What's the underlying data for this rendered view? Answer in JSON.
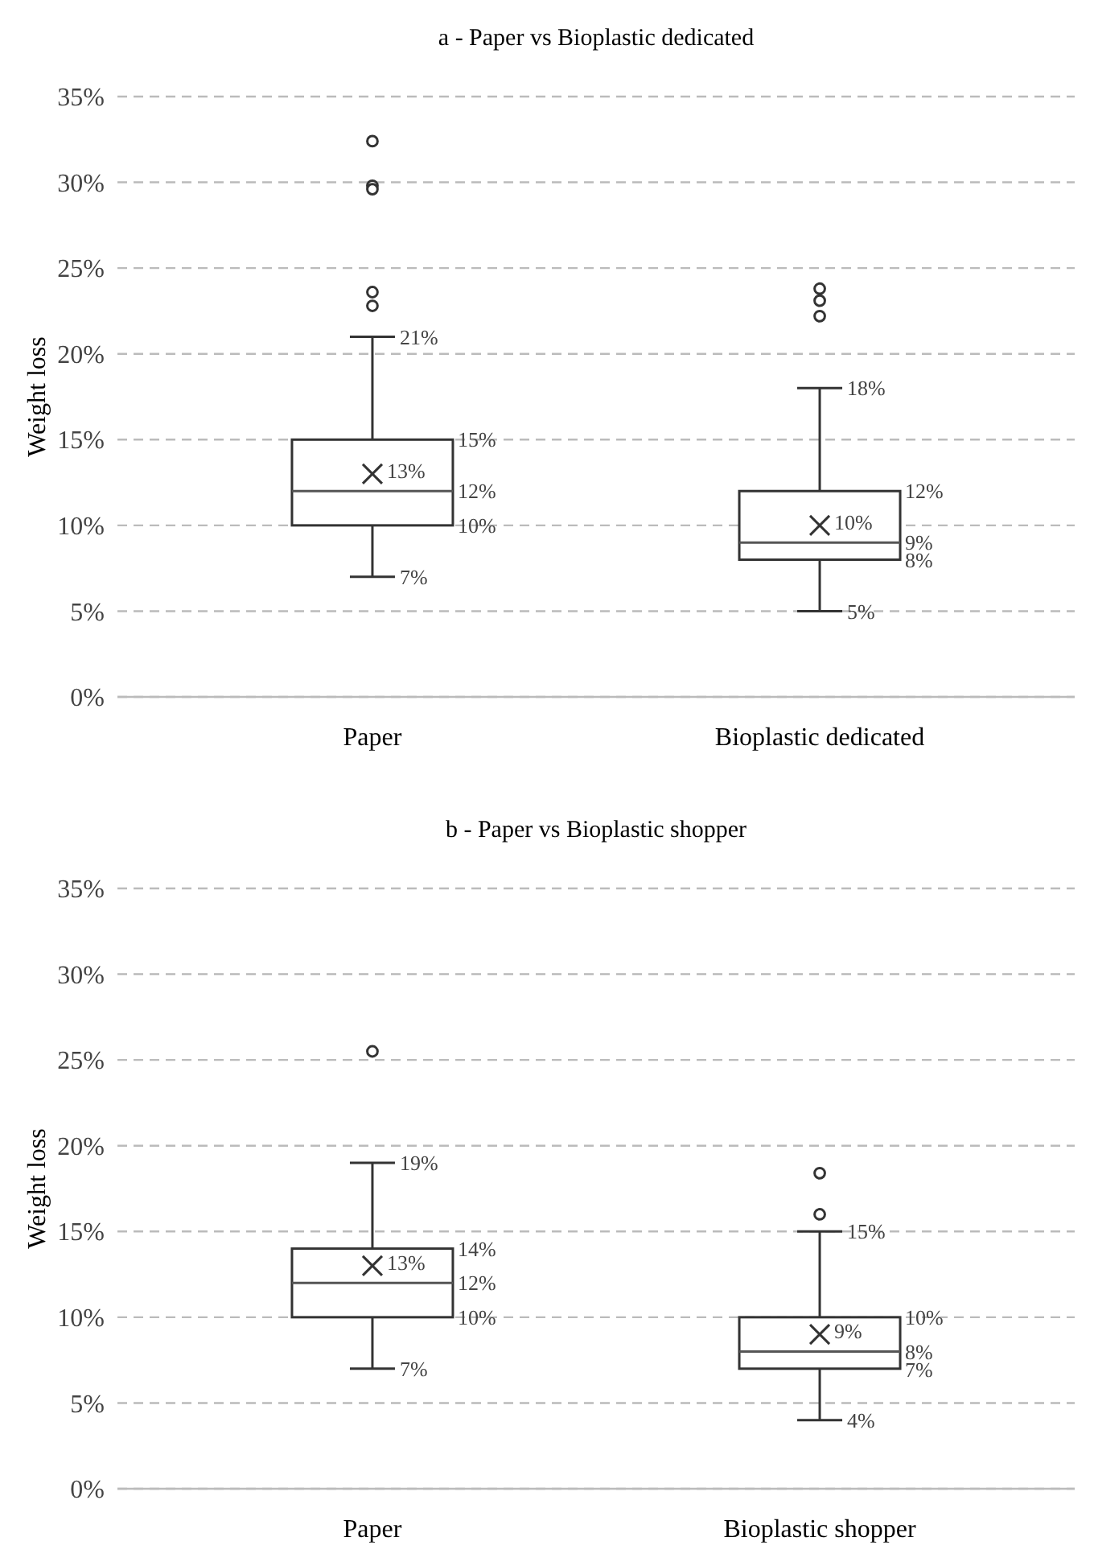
{
  "chart_data": [
    {
      "type": "box",
      "title": "a - Paper vs Bioplastic dedicated",
      "ylabel": "Weight loss",
      "categories": [
        "Paper",
        "Bioplastic dedicated"
      ],
      "boxes": [
        {
          "low": 7,
          "q1": 10,
          "median": 12,
          "q3": 15,
          "high": 21,
          "mean": 13,
          "outliers": [
            32.4,
            29.8,
            29.6,
            23.6,
            22.8
          ]
        },
        {
          "low": 5,
          "q1": 8,
          "median": 9,
          "q3": 12,
          "high": 18,
          "mean": 10,
          "outliers": [
            23.8,
            23.1,
            22.2
          ]
        }
      ],
      "ylim": [
        0,
        35
      ],
      "yticks": [
        {
          "value": 0,
          "label": "0%"
        },
        {
          "value": 5,
          "label": "5%"
        },
        {
          "value": 10,
          "label": "10%"
        },
        {
          "value": 15,
          "label": "15%"
        },
        {
          "value": 20,
          "label": "20%"
        },
        {
          "value": 25,
          "label": "25%"
        },
        {
          "value": 30,
          "label": "30%"
        },
        {
          "value": 35,
          "label": "35%"
        }
      ],
      "grid": "y",
      "annotations": [
        {
          "text": "21%",
          "x": "Paper",
          "y": 21
        },
        {
          "text": "7%",
          "x": "Paper",
          "y": 7
        },
        {
          "text": "18%",
          "x": "Bioplastic dedicated",
          "y": 18
        },
        {
          "text": "5%",
          "x": "Bioplastic dedicated",
          "y": 5
        },
        "15%",
        "13%",
        "12%",
        "10%",
        "12%",
        "10%",
        "9%",
        "8%"
      ]
    },
    {
      "type": "box",
      "title": "b - Paper vs Bioplastic shopper",
      "ylabel": "Weight loss",
      "categories": [
        "Paper",
        "Bioplastic shopper"
      ],
      "boxes": [
        {
          "low": 7,
          "q1": 10,
          "median": 12,
          "q3": 14,
          "high": 19,
          "mean": 13,
          "outliers": [
            25.5
          ]
        },
        {
          "low": 4,
          "q1": 7,
          "median": 8,
          "q3": 10,
          "high": 15,
          "mean": 9,
          "outliers": [
            18.4,
            16.0
          ]
        }
      ],
      "ylim": [
        0,
        35
      ],
      "yticks": [
        {
          "value": 0,
          "label": "0%"
        },
        {
          "value": 5,
          "label": "5%"
        },
        {
          "value": 10,
          "label": "10%"
        },
        {
          "value": 15,
          "label": "15%"
        },
        {
          "value": 20,
          "label": "20%"
        },
        {
          "value": 25,
          "label": "25%"
        },
        {
          "value": 30,
          "label": "30%"
        },
        {
          "value": 35,
          "label": "35%"
        }
      ],
      "grid": "y",
      "annotations": [
        {
          "text": "19%",
          "x": "Paper",
          "y": 19
        },
        {
          "text": "7%",
          "x": "Paper",
          "y": 7
        },
        {
          "text": "15%",
          "x": "Bioplastic shopper",
          "y": 15
        },
        {
          "text": "4%",
          "x": "Bioplastic shopper",
          "y": 4
        },
        "14%",
        "13%",
        "12%",
        "10%",
        "10%",
        "9%",
        "8%",
        "7%"
      ]
    }
  ]
}
